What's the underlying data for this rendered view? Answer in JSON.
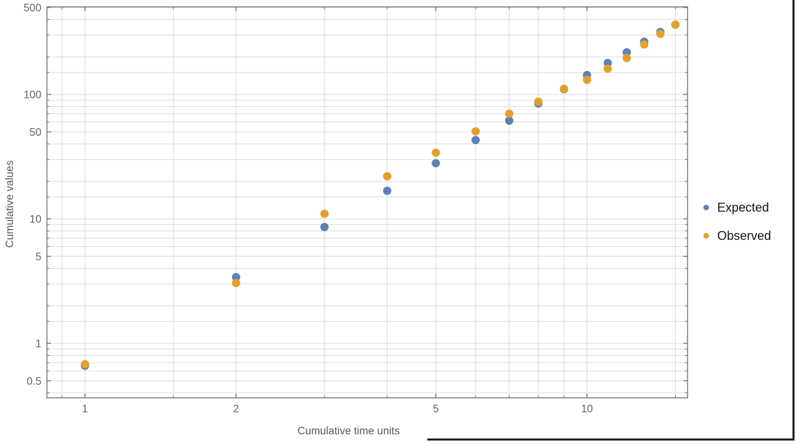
{
  "chart_data": {
    "type": "scatter",
    "title": "",
    "xlabel": "Cumulative time units",
    "ylabel": "Cumulative values",
    "x_scale": "log",
    "y_scale": "log",
    "x_range": [
      0.84,
      15.86
    ],
    "y_range": [
      0.365,
      505
    ],
    "grid": true,
    "grid_subdivisions": [
      1,
      1.5,
      2,
      3,
      4,
      5,
      6,
      7,
      8,
      9
    ],
    "x_ticks": {
      "values": [
        1,
        2,
        5,
        10
      ],
      "labels": [
        "1",
        "2",
        "5",
        "10"
      ]
    },
    "y_ticks": {
      "values": [
        0.5,
        1,
        5,
        10,
        50,
        100,
        500
      ],
      "labels": [
        "0.5",
        "1",
        "5",
        "10",
        "50",
        "100",
        "500"
      ]
    },
    "x": [
      1,
      2,
      3,
      4,
      5,
      6,
      7,
      8,
      9,
      10,
      11,
      12,
      13,
      14,
      15
    ],
    "series": [
      {
        "name": "Expected",
        "color": "#5e81b5",
        "values": [
          0.66,
          3.4,
          8.6,
          16.8,
          28,
          43,
          61.5,
          84.5,
          110,
          143,
          179,
          218,
          265,
          317,
          363
        ]
      },
      {
        "name": "Observed",
        "color": "#e5a02c",
        "values": [
          0.68,
          3.05,
          11,
          22,
          34,
          50.5,
          70,
          87.5,
          111,
          131,
          161,
          196,
          252,
          306,
          364
        ]
      }
    ],
    "legend_position": "right-center",
    "marker_radius_px": 6
  },
  "frame": {
    "border_color": "#6a6a6a",
    "grid_color": "#dbdbdb",
    "tick_label_color": "#636363",
    "axis_label_color": "#585858"
  }
}
